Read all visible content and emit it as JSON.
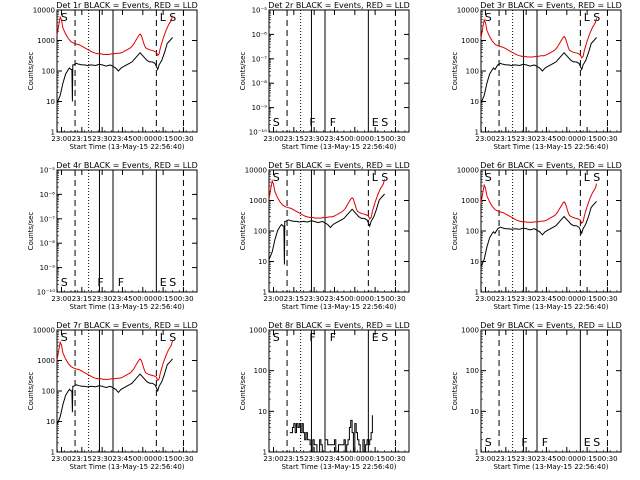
{
  "figure": {
    "x_axis_label": "Start Time (13-May-15 22:56:40)",
    "y_axis_label": "Counts/sec",
    "legend_note": "BLACK = Events, RED = LLD"
  },
  "chart_data": [
    {
      "type": "line",
      "title": "Det 1r  BLACK = Events, RED = LLD",
      "xlabel": "Start Time (13-May-15 22:56:40)",
      "ylabel": "Counts/sec",
      "yscale": "log",
      "ylim": [
        1,
        10000
      ],
      "ytick_labels": [
        "1",
        "10",
        "100",
        "1000",
        "10000"
      ],
      "xtick_labels": [
        "23:00",
        "23:15",
        "23:30",
        "23:45",
        "00:00",
        "00:15",
        "00:30"
      ],
      "xlim_minutes": [
        -3.33,
        100
      ],
      "dashed_lines_minutes": [
        10,
        70,
        90
      ],
      "dotted_lines_minutes": [
        20
      ],
      "solid_lines_minutes": [
        28,
        38
      ],
      "markers": [
        {
          "text": "S",
          "minute": -2
        },
        {
          "text": "L",
          "minute": 71
        },
        {
          "text": "S",
          "minute": 78
        }
      ],
      "series": [
        {
          "name": "Events",
          "color": "#000000",
          "kind": "normal",
          "scale": 1,
          "low_points": [
            [
              8,
              10
            ]
          ]
        },
        {
          "name": "LLD",
          "color": "#e00000",
          "kind": "normal",
          "scale": 2.9
        }
      ]
    },
    {
      "type": "line",
      "title": "Det 2r  BLACK = Events, RED = LLD",
      "xlabel": "Start Time (13-May-15 22:56:40)",
      "ylabel": "Counts/sec",
      "yscale": "log",
      "ylim": [
        1e-10,
        1e-05
      ],
      "ytick_labels": [
        "10⁻¹⁰",
        "10⁻⁹",
        "10⁻⁸",
        "10⁻⁷",
        "10⁻⁶",
        "10⁻⁵"
      ],
      "xtick_labels": [
        "23:00",
        "23:15",
        "23:30",
        "23:45",
        "00:00",
        "00:15",
        "00:30"
      ],
      "xlim_minutes": [
        -3.33,
        100
      ],
      "dashed_lines_minutes": [
        10,
        90
      ],
      "dotted_lines_minutes": [
        20
      ],
      "solid_lines_minutes": [
        28,
        38,
        70
      ],
      "markers": [
        {
          "text": "S",
          "minute": -2
        },
        {
          "text": "F",
          "minute": 25
        },
        {
          "text": "F",
          "minute": 40
        },
        {
          "text": "E",
          "minute": 71
        },
        {
          "text": "S",
          "minute": 78
        }
      ],
      "series": []
    },
    {
      "type": "line",
      "title": "Det 3r  BLACK = Events, RED = LLD",
      "xlabel": "Start Time (13-May-15 22:56:40)",
      "ylabel": "Counts/sec",
      "yscale": "log",
      "ylim": [
        1,
        10000
      ],
      "ytick_labels": [
        "1",
        "10",
        "100",
        "1000",
        "10000"
      ],
      "xtick_labels": [
        "23:00",
        "23:15",
        "23:30",
        "23:45",
        "00:00",
        "00:15",
        "00:30"
      ],
      "xlim_minutes": [
        -3.33,
        100
      ],
      "dashed_lines_minutes": [
        10,
        70,
        90
      ],
      "dotted_lines_minutes": [
        20
      ],
      "solid_lines_minutes": [
        28,
        38
      ],
      "markers": [
        {
          "text": "S",
          "minute": -2
        },
        {
          "text": "L",
          "minute": 71
        },
        {
          "text": "S",
          "minute": 78
        }
      ],
      "series": [
        {
          "name": "Events",
          "color": "#000000",
          "kind": "normal",
          "scale": 1
        },
        {
          "name": "LLD",
          "color": "#e00000",
          "kind": "normal",
          "scale": 2.4
        }
      ]
    },
    {
      "type": "line",
      "title": "Det 4r  BLACK = Events, RED = LLD",
      "xlabel": "Start Time (13-May-15 22:56:40)",
      "ylabel": "Counts/sec",
      "yscale": "log",
      "ylim": [
        1e-10,
        1e-05
      ],
      "ytick_labels": [
        "10⁻¹⁰",
        "10⁻⁹",
        "10⁻⁸",
        "10⁻⁷",
        "10⁻⁶",
        "10⁻⁵"
      ],
      "xtick_labels": [
        "23:00",
        "23:15",
        "23:30",
        "23:45",
        "00:00",
        "00:15",
        "00:30"
      ],
      "xlim_minutes": [
        -3.33,
        100
      ],
      "dashed_lines_minutes": [
        10,
        90
      ],
      "dotted_lines_minutes": [
        20
      ],
      "solid_lines_minutes": [
        28,
        38,
        70
      ],
      "markers": [
        {
          "text": "S",
          "minute": -2
        },
        {
          "text": "F",
          "minute": 25
        },
        {
          "text": "F",
          "minute": 40
        },
        {
          "text": "E",
          "minute": 71
        },
        {
          "text": "S",
          "minute": 78
        }
      ],
      "series": []
    },
    {
      "type": "line",
      "title": "Det 5r  BLACK = Events, RED = LLD",
      "xlabel": "Start Time (13-May-15 22:56:40)",
      "ylabel": "Counts/sec",
      "yscale": "log",
      "ylim": [
        1,
        10000
      ],
      "ytick_labels": [
        "1",
        "10",
        "100",
        "1000",
        "10000"
      ],
      "xtick_labels": [
        "23:00",
        "23:15",
        "23:30",
        "23:45",
        "00:00",
        "00:15",
        "00:30"
      ],
      "xlim_minutes": [
        -3.33,
        100
      ],
      "dashed_lines_minutes": [
        10,
        70,
        90
      ],
      "dotted_lines_minutes": [
        20
      ],
      "solid_lines_minutes": [
        28,
        38
      ],
      "markers": [
        {
          "text": "S",
          "minute": -2
        },
        {
          "text": "L",
          "minute": 71
        },
        {
          "text": "S",
          "minute": 78
        }
      ],
      "series": [
        {
          "name": "Events",
          "color": "#000000",
          "kind": "normal",
          "scale": 1.3,
          "low_points": [
            [
              8,
              8
            ]
          ]
        },
        {
          "name": "LLD",
          "color": "#e00000",
          "kind": "normal",
          "scale": 2.2
        }
      ]
    },
    {
      "type": "line",
      "title": "Det 6r  BLACK = Events, RED = LLD",
      "xlabel": "Start Time (13-May-15 22:56:40)",
      "ylabel": "Counts/sec",
      "yscale": "log",
      "ylim": [
        1,
        10000
      ],
      "ytick_labels": [
        "1",
        "10",
        "100",
        "1000",
        "10000"
      ],
      "xtick_labels": [
        "23:00",
        "23:15",
        "23:30",
        "23:45",
        "00:00",
        "00:15",
        "00:30"
      ],
      "xlim_minutes": [
        -3.33,
        100
      ],
      "dashed_lines_minutes": [
        10,
        70,
        90
      ],
      "dotted_lines_minutes": [
        20
      ],
      "solid_lines_minutes": [
        28,
        38
      ],
      "markers": [
        {
          "text": "S",
          "minute": -2
        },
        {
          "text": "L",
          "minute": 71
        },
        {
          "text": "S",
          "minute": 78
        }
      ],
      "series": [
        {
          "name": "Events",
          "color": "#000000",
          "kind": "normal",
          "scale": 0.75
        },
        {
          "name": "LLD",
          "color": "#e00000",
          "kind": "normal",
          "scale": 1.6
        }
      ]
    },
    {
      "type": "line",
      "title": "Det 7r  BLACK = Events, RED = LLD",
      "xlabel": "Start Time (13-May-15 22:56:40)",
      "ylabel": "Counts/sec",
      "yscale": "log",
      "ylim": [
        1,
        10000
      ],
      "ytick_labels": [
        "1",
        "10",
        "100",
        "1000",
        "10000"
      ],
      "xtick_labels": [
        "23:00",
        "23:15",
        "23:30",
        "23:45",
        "00:00",
        "00:15",
        "00:30"
      ],
      "xlim_minutes": [
        -3.33,
        100
      ],
      "dashed_lines_minutes": [
        10,
        70,
        90
      ],
      "dotted_lines_minutes": [
        20
      ],
      "solid_lines_minutes": [
        28,
        38
      ],
      "markers": [
        {
          "text": "S",
          "minute": -2
        },
        {
          "text": "L",
          "minute": 71
        },
        {
          "text": "S",
          "minute": 78
        }
      ],
      "series": [
        {
          "name": "Events",
          "color": "#000000",
          "kind": "normal",
          "scale": 0.9,
          "low_points": [
            [
              8,
              20
            ]
          ]
        },
        {
          "name": "LLD",
          "color": "#e00000",
          "kind": "normal",
          "scale": 2.0
        }
      ]
    },
    {
      "type": "line",
      "title": "Det 8r  BLACK = Events, RED = LLD",
      "xlabel": "Start Time (13-May-15 22:56:40)",
      "ylabel": "Counts/sec",
      "yscale": "log",
      "ylim": [
        1,
        1000
      ],
      "ytick_labels": [
        "1",
        "10",
        "100",
        "1000"
      ],
      "xtick_labels": [
        "23:00",
        "23:15",
        "23:30",
        "23:45",
        "00:00",
        "00:15",
        "00:30"
      ],
      "xlim_minutes": [
        -3.33,
        100
      ],
      "dashed_lines_minutes": [
        10,
        90
      ],
      "dotted_lines_minutes": [
        20
      ],
      "solid_lines_minutes": [
        28,
        38,
        70
      ],
      "markers": [
        {
          "text": "S",
          "minute": -2
        },
        {
          "text": "F",
          "minute": 25
        },
        {
          "text": "F",
          "minute": 40
        },
        {
          "text": "E",
          "minute": 71
        },
        {
          "text": "S",
          "minute": 78
        }
      ],
      "series": [
        {
          "name": "Events",
          "color": "#000000",
          "kind": "sparse",
          "points": [
            [
              12,
              3
            ],
            [
              14,
              4
            ],
            [
              15,
              5
            ],
            [
              16,
              3
            ],
            [
              17,
              5
            ],
            [
              18,
              4
            ],
            [
              19,
              5
            ],
            [
              20,
              3
            ],
            [
              21,
              5
            ],
            [
              22,
              3
            ],
            [
              23,
              2
            ],
            [
              24,
              3
            ],
            [
              25,
              2
            ],
            [
              26,
              2
            ],
            [
              27,
              1.5
            ],
            [
              28,
              1
            ],
            [
              29,
              2
            ],
            [
              30,
              1.5
            ],
            [
              32,
              1
            ],
            [
              34,
              2
            ],
            [
              35,
              1.5
            ],
            [
              36,
              1
            ],
            [
              38,
              2
            ],
            [
              40,
              1.5
            ],
            [
              42,
              1.5
            ],
            [
              44,
              1.5
            ],
            [
              45,
              2
            ],
            [
              46,
              1
            ],
            [
              48,
              1.5
            ],
            [
              50,
              1.5
            ],
            [
              52,
              2
            ],
            [
              53,
              1
            ],
            [
              54,
              1.5
            ],
            [
              55,
              2
            ],
            [
              56,
              4
            ],
            [
              57,
              6
            ],
            [
              58,
              3
            ],
            [
              59,
              1
            ],
            [
              60,
              5
            ],
            [
              61,
              3
            ],
            [
              62,
              2
            ],
            [
              63,
              1.5
            ],
            [
              64,
              1
            ],
            [
              66,
              2
            ],
            [
              67,
              1
            ],
            [
              68,
              1.5
            ],
            [
              69,
              2
            ],
            [
              70,
              1.5
            ],
            [
              71,
              2
            ],
            [
              72,
              3
            ],
            [
              73,
              8
            ]
          ]
        }
      ]
    },
    {
      "type": "line",
      "title": "Det 9r  BLACK = Events, RED = LLD",
      "xlabel": "Start Time (13-May-15 22:56:40)",
      "ylabel": "Counts/sec",
      "yscale": "log",
      "ylim": [
        1,
        1000
      ],
      "ytick_labels": [
        "1",
        "10",
        "100",
        "1000"
      ],
      "xtick_labels": [
        "23:00",
        "23:15",
        "23:30",
        "23:45",
        "00:00",
        "00:15",
        "00:30"
      ],
      "xlim_minutes": [
        -3.33,
        100
      ],
      "dashed_lines_minutes": [
        10,
        90
      ],
      "dotted_lines_minutes": [
        20
      ],
      "solid_lines_minutes": [
        28,
        38,
        70
      ],
      "markers": [
        {
          "text": "S",
          "minute": -2
        },
        {
          "text": "F",
          "minute": 25
        },
        {
          "text": "F",
          "minute": 40
        },
        {
          "text": "E",
          "minute": 71
        },
        {
          "text": "S",
          "minute": 78
        }
      ],
      "series": []
    }
  ]
}
